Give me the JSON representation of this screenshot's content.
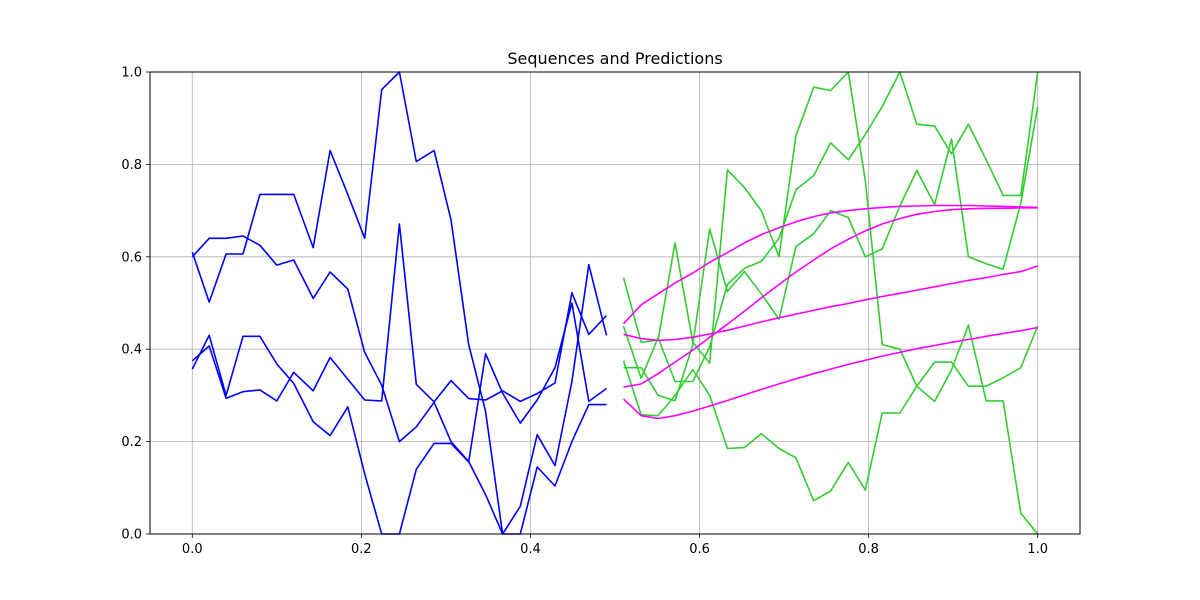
{
  "chart_data": {
    "type": "line",
    "title": "Sequences and Predictions",
    "xlabel": "",
    "ylabel": "",
    "xlim": [
      -0.05,
      1.05
    ],
    "ylim": [
      0,
      1
    ],
    "grid": true,
    "x_ticks": [
      "0.0",
      "0.2",
      "0.4",
      "0.6",
      "0.8",
      "1.0"
    ],
    "y_ticks": [
      "0.0",
      "0.2",
      "0.4",
      "0.6",
      "0.8",
      "1.0"
    ],
    "colors": {
      "input": "#0000ff",
      "target": "#33cc33",
      "prediction": "#ff00ff"
    },
    "series": [
      {
        "group": "input",
        "x": [
          0.0,
          0.02,
          0.04,
          0.06,
          0.08,
          0.1,
          0.12,
          0.143,
          0.163,
          0.184,
          0.204,
          0.224,
          0.245,
          0.265,
          0.286,
          0.306,
          0.327,
          0.347,
          0.367,
          0.388,
          0.408,
          0.429,
          0.449,
          0.469,
          0.49
        ],
        "y": [
          0.61,
          0.502,
          0.606,
          0.606,
          0.735,
          0.735,
          0.735,
          0.62,
          0.83,
          0.735,
          0.64,
          0.962,
          1.0,
          0.806,
          0.83,
          0.68,
          0.41,
          0.265,
          0.0,
          0.06,
          0.215,
          0.148,
          0.33,
          0.583,
          0.43
        ]
      },
      {
        "group": "input",
        "x": [
          0.0,
          0.02,
          0.04,
          0.06,
          0.08,
          0.1,
          0.12,
          0.143,
          0.163,
          0.184,
          0.204,
          0.224,
          0.245,
          0.265,
          0.286,
          0.306,
          0.327,
          0.347,
          0.367,
          0.388,
          0.408,
          0.429,
          0.449,
          0.469,
          0.49
        ],
        "y": [
          0.6,
          0.64,
          0.64,
          0.645,
          0.625,
          0.582,
          0.593,
          0.51,
          0.567,
          0.53,
          0.393,
          0.322,
          0.2,
          0.232,
          0.285,
          0.2,
          0.157,
          0.085,
          0.0,
          0.0,
          0.145,
          0.104,
          0.2,
          0.28,
          0.28
        ]
      },
      {
        "group": "input",
        "x": [
          0.0,
          0.02,
          0.04,
          0.06,
          0.08,
          0.1,
          0.12,
          0.143,
          0.163,
          0.184,
          0.204,
          0.224,
          0.245,
          0.265,
          0.286,
          0.306,
          0.327,
          0.347,
          0.367,
          0.388,
          0.408,
          0.429,
          0.449,
          0.469,
          0.49
        ],
        "y": [
          0.357,
          0.43,
          0.3,
          0.428,
          0.428,
          0.368,
          0.326,
          0.243,
          0.213,
          0.275,
          0.13,
          0.0,
          0.0,
          0.14,
          0.196,
          0.196,
          0.156,
          0.39,
          0.305,
          0.24,
          0.29,
          0.36,
          0.5,
          0.287,
          0.315
        ]
      },
      {
        "group": "input",
        "x": [
          0.0,
          0.02,
          0.04,
          0.06,
          0.08,
          0.1,
          0.12,
          0.143,
          0.163,
          0.184,
          0.204,
          0.224,
          0.245,
          0.265,
          0.286,
          0.306,
          0.327,
          0.347,
          0.367,
          0.388,
          0.408,
          0.429,
          0.449,
          0.469,
          0.49
        ],
        "y": [
          0.375,
          0.407,
          0.294,
          0.308,
          0.312,
          0.288,
          0.35,
          0.31,
          0.382,
          0.335,
          0.29,
          0.288,
          0.671,
          0.324,
          0.286,
          0.332,
          0.293,
          0.29,
          0.31,
          0.287,
          0.304,
          0.327,
          0.522,
          0.432,
          0.473
        ]
      },
      {
        "group": "target",
        "x": [
          0.51,
          0.531,
          0.551,
          0.571,
          0.592,
          0.612,
          0.633,
          0.653,
          0.673,
          0.694,
          0.714,
          0.735,
          0.755,
          0.776,
          0.796,
          0.816,
          0.837,
          0.857,
          0.878,
          0.898,
          0.918,
          0.939,
          0.959,
          0.98,
          1.0
        ],
        "y": [
          0.555,
          0.415,
          0.42,
          0.63,
          0.415,
          0.37,
          0.788,
          0.75,
          0.7,
          0.6,
          0.862,
          0.967,
          0.96,
          1.0,
          0.765,
          0.41,
          0.4,
          0.32,
          0.287,
          0.355,
          0.452,
          0.288,
          0.288,
          0.045,
          0.0
        ]
      },
      {
        "group": "target",
        "x": [
          0.51,
          0.531,
          0.551,
          0.571,
          0.592,
          0.612,
          0.633,
          0.653,
          0.673,
          0.694,
          0.714,
          0.735,
          0.755,
          0.776,
          0.796,
          0.816,
          0.837,
          0.857,
          0.878,
          0.898,
          0.918,
          0.939,
          0.959,
          0.98,
          1.0
        ],
        "y": [
          0.45,
          0.337,
          0.425,
          0.33,
          0.33,
          0.405,
          0.54,
          0.575,
          0.59,
          0.64,
          0.745,
          0.776,
          0.847,
          0.81,
          0.865,
          0.925,
          1.0,
          0.887,
          0.883,
          0.823,
          0.887,
          0.81,
          0.733,
          0.733,
          1.0
        ]
      },
      {
        "group": "target",
        "x": [
          0.51,
          0.531,
          0.551,
          0.571,
          0.592,
          0.612,
          0.633,
          0.653,
          0.673,
          0.694,
          0.714,
          0.735,
          0.755,
          0.776,
          0.796,
          0.816,
          0.837,
          0.857,
          0.878,
          0.898,
          0.918,
          0.939,
          0.959,
          0.98,
          1.0
        ],
        "y": [
          0.375,
          0.258,
          0.256,
          0.3,
          0.356,
          0.3,
          0.185,
          0.187,
          0.217,
          0.185,
          0.165,
          0.072,
          0.093,
          0.155,
          0.095,
          0.262,
          0.262,
          0.32,
          0.372,
          0.372,
          0.32,
          0.32,
          0.338,
          0.36,
          0.45
        ]
      },
      {
        "group": "target",
        "x": [
          0.51,
          0.531,
          0.551,
          0.571,
          0.592,
          0.612,
          0.633,
          0.653,
          0.673,
          0.694,
          0.714,
          0.735,
          0.755,
          0.776,
          0.796,
          0.816,
          0.837,
          0.857,
          0.878,
          0.898,
          0.918,
          0.939,
          0.959,
          0.98,
          1.0
        ],
        "y": [
          0.36,
          0.36,
          0.3,
          0.288,
          0.41,
          0.66,
          0.525,
          0.568,
          0.52,
          0.465,
          0.622,
          0.65,
          0.7,
          0.685,
          0.6,
          0.617,
          0.71,
          0.787,
          0.713,
          0.855,
          0.6,
          0.585,
          0.573,
          0.716,
          0.925
        ]
      },
      {
        "group": "prediction",
        "x": [
          0.51,
          0.531,
          0.551,
          0.571,
          0.592,
          0.612,
          0.633,
          0.653,
          0.673,
          0.694,
          0.714,
          0.735,
          0.755,
          0.776,
          0.796,
          0.816,
          0.837,
          0.857,
          0.878,
          0.898,
          0.918,
          0.939,
          0.959,
          0.98,
          1.0
        ],
        "y": [
          0.455,
          0.496,
          0.52,
          0.543,
          0.565,
          0.588,
          0.609,
          0.63,
          0.648,
          0.663,
          0.676,
          0.687,
          0.695,
          0.7,
          0.704,
          0.707,
          0.709,
          0.71,
          0.711,
          0.711,
          0.711,
          0.71,
          0.709,
          0.708,
          0.707
        ]
      },
      {
        "group": "prediction",
        "x": [
          0.51,
          0.531,
          0.551,
          0.571,
          0.592,
          0.612,
          0.633,
          0.653,
          0.673,
          0.694,
          0.714,
          0.735,
          0.755,
          0.776,
          0.796,
          0.816,
          0.837,
          0.857,
          0.878,
          0.898,
          0.918,
          0.939,
          0.959,
          0.98,
          1.0
        ],
        "y": [
          0.432,
          0.423,
          0.419,
          0.421,
          0.426,
          0.433,
          0.441,
          0.45,
          0.459,
          0.468,
          0.476,
          0.484,
          0.492,
          0.499,
          0.507,
          0.514,
          0.521,
          0.528,
          0.535,
          0.542,
          0.549,
          0.555,
          0.562,
          0.568,
          0.58
        ]
      },
      {
        "group": "prediction",
        "x": [
          0.51,
          0.531,
          0.551,
          0.571,
          0.592,
          0.612,
          0.633,
          0.653,
          0.673,
          0.694,
          0.714,
          0.735,
          0.755,
          0.776,
          0.796,
          0.816,
          0.837,
          0.857,
          0.878,
          0.898,
          0.918,
          0.939,
          0.959,
          0.98,
          1.0
        ],
        "y": [
          0.318,
          0.325,
          0.347,
          0.372,
          0.398,
          0.426,
          0.454,
          0.482,
          0.511,
          0.54,
          0.567,
          0.593,
          0.617,
          0.638,
          0.656,
          0.671,
          0.683,
          0.692,
          0.698,
          0.702,
          0.704,
          0.705,
          0.705,
          0.706,
          0.706
        ]
      },
      {
        "group": "prediction",
        "x": [
          0.51,
          0.531,
          0.551,
          0.571,
          0.592,
          0.612,
          0.633,
          0.653,
          0.673,
          0.694,
          0.714,
          0.735,
          0.755,
          0.776,
          0.796,
          0.816,
          0.837,
          0.857,
          0.878,
          0.898,
          0.918,
          0.939,
          0.959,
          0.98,
          1.0
        ],
        "y": [
          0.292,
          0.256,
          0.25,
          0.256,
          0.266,
          0.277,
          0.289,
          0.301,
          0.313,
          0.325,
          0.336,
          0.347,
          0.357,
          0.367,
          0.376,
          0.385,
          0.393,
          0.401,
          0.408,
          0.415,
          0.421,
          0.428,
          0.434,
          0.44,
          0.447
        ]
      }
    ]
  }
}
